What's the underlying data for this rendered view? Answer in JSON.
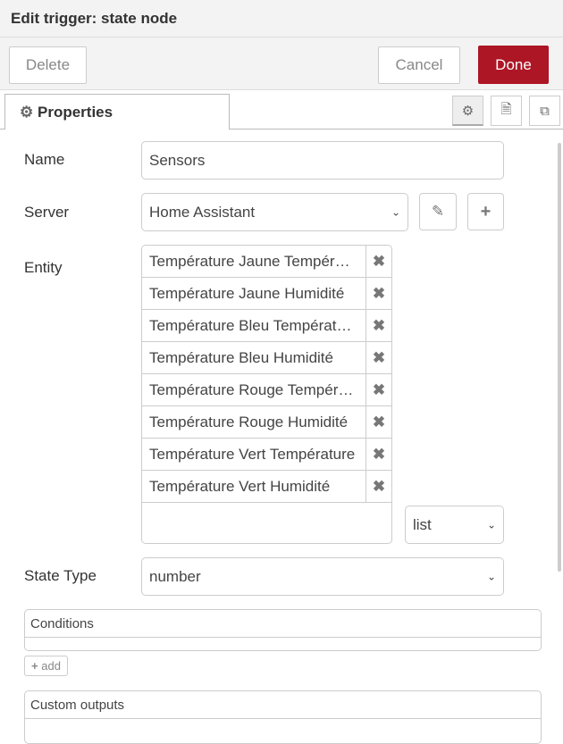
{
  "header": {
    "title": "Edit trigger: state node"
  },
  "toolbar": {
    "delete": "Delete",
    "cancel": "Cancel",
    "done": "Done",
    "done_color": "#ad1625"
  },
  "tabs": {
    "properties": "Properties",
    "icons": [
      "gear-icon",
      "description-icon",
      "appearance-icon"
    ]
  },
  "form": {
    "name_label": "Name",
    "name_value": "Sensors",
    "server_label": "Server",
    "server_value": "Home Assistant",
    "entity_label": "Entity",
    "entities": [
      "Température Jaune Température",
      "Température Jaune Humidité",
      "Température Bleu Température",
      "Température Bleu Humidité",
      "Température Rouge Température",
      "Température Rouge Humidité",
      "Température Vert Température",
      "Température Vert Humidité"
    ],
    "entity_mode": "list",
    "state_type_label": "State Type",
    "state_type_value": "number",
    "conditions_label": "Conditions",
    "add_label": "add",
    "custom_outputs_label": "Custom outputs"
  }
}
